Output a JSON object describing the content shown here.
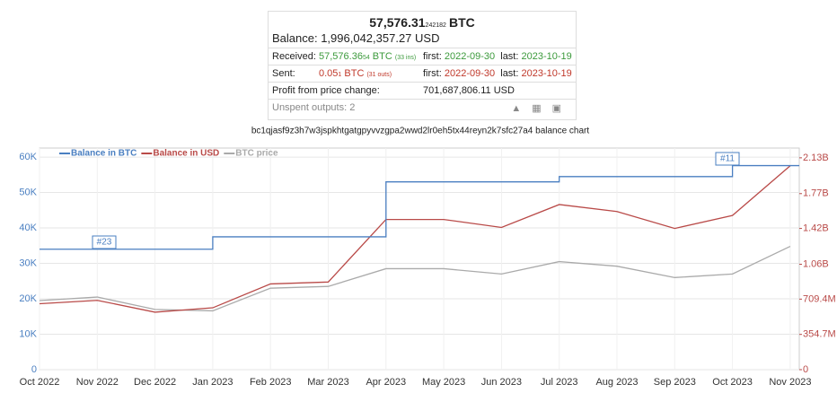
{
  "info": {
    "amount": "57,576.31",
    "amount_small": "242182",
    "amount_unit": "BTC",
    "balance": "Balance: 1,996,042,357.27 USD",
    "received": {
      "label": "Received:",
      "value": "57,576.36",
      "small": "54",
      "unit": "BTC",
      "count": "(33 ins)",
      "first_label": "first:",
      "first": "2022-09-30",
      "last_label": "last:",
      "last": "2023-10-19"
    },
    "sent": {
      "label": "Sent:",
      "value": "0.05",
      "small": "1",
      "unit": "BTC",
      "count": "(31 outs)",
      "first_label": "first:",
      "first": "2022-09-30",
      "last_label": "last:",
      "last": "2023-10-19"
    },
    "profit": {
      "label": "Profit from price change:",
      "value": "701,687,806.11 USD"
    },
    "unspent": "Unspent outputs: 2"
  },
  "chart_data": {
    "type": "line",
    "title": "bc1qjasf9z3h7w3jspkhtgatgpyvvzgpa2wwd2lr0eh5tx44reyn2k7sfc27a4 balance chart",
    "categories": [
      "Oct 2022",
      "Nov 2022",
      "Dec 2022",
      "Jan 2023",
      "Feb 2023",
      "Mar 2023",
      "Apr 2023",
      "May 2023",
      "Jun 2023",
      "Jul 2023",
      "Aug 2023",
      "Sep 2023",
      "Oct 2023",
      "Nov 2023"
    ],
    "series": [
      {
        "name": "Balance in BTC",
        "color": "#4a7fc1",
        "step": true,
        "values": [
          34000,
          34000,
          34000,
          37500,
          37500,
          37500,
          53000,
          53000,
          53000,
          54500,
          54500,
          54500,
          57600,
          57600
        ]
      },
      {
        "name": "Balance in USD",
        "color": "#b94a48",
        "axis": "y2",
        "values": [
          663000000,
          697000000,
          578000000,
          622000000,
          862000000,
          881000000,
          1510000000,
          1510000000,
          1430000000,
          1660000000,
          1590000000,
          1420000000,
          1550000000,
          2050000000
        ]
      },
      {
        "name": "BTC price",
        "color": "#aaaaaa",
        "values": [
          19500,
          20500,
          17000,
          16600,
          23000,
          23500,
          28500,
          28500,
          27000,
          30500,
          29200,
          26000,
          27000,
          34800
        ]
      }
    ],
    "annotations": [
      "#23",
      "#11"
    ],
    "ylim": [
      0,
      62550
    ],
    "yticks": [
      0,
      {
        "value": 10000,
        "label": "10K"
      },
      {
        "value": 20000,
        "label": "20K"
      },
      {
        "value": 30000,
        "label": "30K"
      },
      {
        "value": 40000,
        "label": "40K"
      },
      {
        "value": 50000,
        "label": "50K"
      },
      {
        "value": 60000,
        "label": "60K"
      }
    ],
    "y2lim": [
      0,
      2228000000
    ],
    "y2ticks": [
      0,
      {
        "value": 354700000,
        "label": "354.7M"
      },
      {
        "value": 709400000,
        "label": "709.4M"
      },
      {
        "value": 1060000000,
        "label": "1.06B"
      },
      {
        "value": 1420000000,
        "label": "1.42B"
      },
      {
        "value": 1770000000,
        "label": "1.77B"
      },
      {
        "value": 2130000000,
        "label": "2.13B"
      }
    ],
    "grid": true
  }
}
